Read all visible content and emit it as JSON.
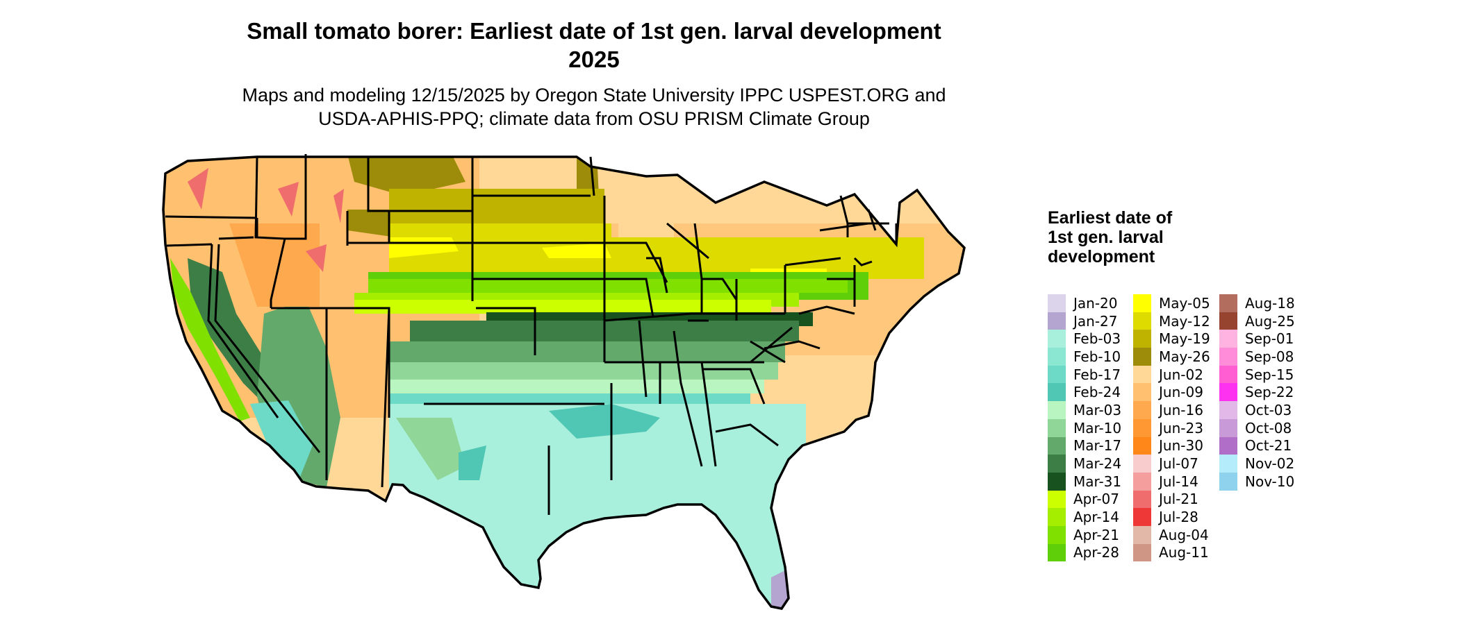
{
  "title_line1": "Small tomato borer: Earliest date of 1st gen. larval development",
  "title_line2": "2025",
  "subtitle_line1": "Maps and modeling 12/15/2025 by Oregon State University IPPC USPEST.ORG and",
  "subtitle_line2": "USDA-APHIS-PPQ; climate data from OSU PRISM Climate Group",
  "legend": {
    "title": "Earliest date of 1st gen. larval development",
    "columns": [
      [
        {
          "label": "Jan-20",
          "color": "#dcd4ea"
        },
        {
          "label": "Jan-27",
          "color": "#b3a5cf"
        },
        {
          "label": "Feb-03",
          "color": "#a8f0dc"
        },
        {
          "label": "Feb-10",
          "color": "#8be6d2"
        },
        {
          "label": "Feb-17",
          "color": "#6dd9c7"
        },
        {
          "label": "Feb-24",
          "color": "#4fc7b4"
        },
        {
          "label": "Mar-03",
          "color": "#b8f5c0"
        },
        {
          "label": "Mar-10",
          "color": "#8fd698"
        },
        {
          "label": "Mar-17",
          "color": "#64a96c"
        },
        {
          "label": "Mar-24",
          "color": "#3c7e45"
        },
        {
          "label": "Mar-31",
          "color": "#17521f"
        },
        {
          "label": "Apr-07",
          "color": "#ccff00"
        },
        {
          "label": "Apr-14",
          "color": "#a6ee00"
        },
        {
          "label": "Apr-21",
          "color": "#80e000"
        },
        {
          "label": "Apr-28",
          "color": "#5fcf0a"
        }
      ],
      [
        {
          "label": "May-05",
          "color": "#ffff00"
        },
        {
          "label": "May-12",
          "color": "#dedb00"
        },
        {
          "label": "May-19",
          "color": "#bfb300"
        },
        {
          "label": "May-26",
          "color": "#9c8c0a"
        },
        {
          "label": "Jun-02",
          "color": "#ffd897"
        },
        {
          "label": "Jun-09",
          "color": "#ffc070"
        },
        {
          "label": "Jun-16",
          "color": "#ffa94f"
        },
        {
          "label": "Jun-23",
          "color": "#ff9833"
        },
        {
          "label": "Jun-30",
          "color": "#ff8619"
        },
        {
          "label": "Jul-07",
          "color": "#f8cccc"
        },
        {
          "label": "Jul-14",
          "color": "#f49e9e"
        },
        {
          "label": "Jul-21",
          "color": "#f06d6d"
        },
        {
          "label": "Jul-28",
          "color": "#ee3838"
        },
        {
          "label": "Aug-04",
          "color": "#e2b9a9"
        },
        {
          "label": "Aug-11",
          "color": "#cf9685"
        }
      ],
      [
        {
          "label": "Aug-18",
          "color": "#b26d5e"
        },
        {
          "label": "Aug-25",
          "color": "#96432f"
        },
        {
          "label": "Sep-01",
          "color": "#ffb3e1"
        },
        {
          "label": "Sep-08",
          "color": "#ff8cd8"
        },
        {
          "label": "Sep-15",
          "color": "#ff5ed2"
        },
        {
          "label": "Sep-22",
          "color": "#fc32f0"
        },
        {
          "label": "Oct-03",
          "color": "#e2b8e8"
        },
        {
          "label": "Oct-08",
          "color": "#c99ad8"
        },
        {
          "label": "Oct-21",
          "color": "#b06ec8"
        },
        {
          "label": "Nov-02",
          "color": "#b5ecfb"
        },
        {
          "label": "Nov-10",
          "color": "#8ed2ee"
        }
      ]
    ]
  }
}
